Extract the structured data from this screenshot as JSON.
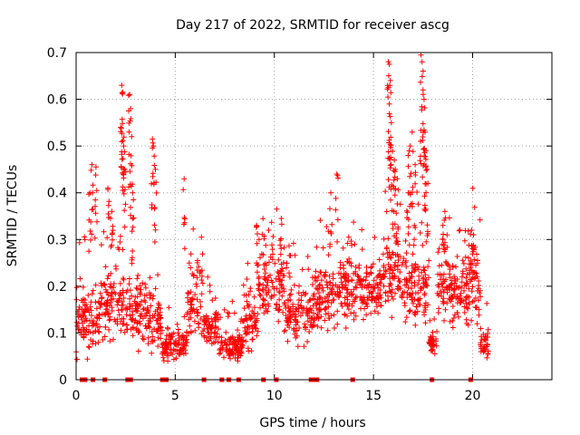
{
  "chart_data": {
    "type": "scatter",
    "title": "Day 217 of 2022, SRMTID for receiver ascg",
    "xlabel": "GPS time / hours",
    "ylabel": "SRMTID / TECUs",
    "xlim": [
      0,
      24
    ],
    "ylim": [
      0,
      0.7
    ],
    "xticks": [
      0,
      5,
      10,
      15,
      20
    ],
    "xtick_labels": [
      "0",
      "5",
      "10",
      "15",
      "20"
    ],
    "yticks": [
      0,
      0.1,
      0.2,
      0.3,
      0.4,
      0.5,
      0.6,
      0.7
    ],
    "ytick_labels": [
      "0",
      "0.1",
      "0.2",
      "0.3",
      "0.4",
      "0.5",
      "0.6",
      "0.7"
    ],
    "grid": true,
    "marker": "+",
    "marker_color": "#ff0000",
    "baseline_marker": "square",
    "data_range_hours": [
      0,
      20.8
    ],
    "baseline_points_x": [
      0.3,
      0.45,
      0.85,
      1.45,
      2.6,
      2.75,
      4.35,
      4.55,
      6.45,
      7.35,
      7.7,
      8.2,
      9.45,
      10.1,
      11.85,
      12.0,
      12.15,
      13.95,
      17.95,
      19.9
    ],
    "bursts": [
      {
        "x": 0.8,
        "y": 0.46
      },
      {
        "x": 1.0,
        "y": 0.455
      },
      {
        "x": 0.7,
        "y": 0.4
      },
      {
        "x": 1.6,
        "y": 0.41
      },
      {
        "x": 1.8,
        "y": 0.36
      },
      {
        "x": 2.25,
        "y": 0.54
      },
      {
        "x": 2.3,
        "y": 0.63
      },
      {
        "x": 2.35,
        "y": 0.615
      },
      {
        "x": 2.4,
        "y": 0.5
      },
      {
        "x": 2.45,
        "y": 0.45
      },
      {
        "x": 2.7,
        "y": 0.61
      },
      {
        "x": 2.75,
        "y": 0.58
      },
      {
        "x": 2.8,
        "y": 0.52
      },
      {
        "x": 2.85,
        "y": 0.4
      },
      {
        "x": 3.85,
        "y": 0.515
      },
      {
        "x": 3.9,
        "y": 0.5
      },
      {
        "x": 4.0,
        "y": 0.45
      },
      {
        "x": 5.45,
        "y": 0.43
      },
      {
        "x": 9.1,
        "y": 0.33
      },
      {
        "x": 10.35,
        "y": 0.345
      },
      {
        "x": 12.85,
        "y": 0.4
      },
      {
        "x": 13.15,
        "y": 0.44
      },
      {
        "x": 15.75,
        "y": 0.68
      },
      {
        "x": 15.8,
        "y": 0.675
      },
      {
        "x": 15.85,
        "y": 0.64
      },
      {
        "x": 15.8,
        "y": 0.59
      },
      {
        "x": 15.9,
        "y": 0.55
      },
      {
        "x": 16.05,
        "y": 0.47
      },
      {
        "x": 16.1,
        "y": 0.45
      },
      {
        "x": 16.2,
        "y": 0.43
      },
      {
        "x": 16.75,
        "y": 0.48
      },
      {
        "x": 16.85,
        "y": 0.5
      },
      {
        "x": 16.95,
        "y": 0.53
      },
      {
        "x": 17.1,
        "y": 0.46
      },
      {
        "x": 17.4,
        "y": 0.695
      },
      {
        "x": 17.45,
        "y": 0.68
      },
      {
        "x": 17.5,
        "y": 0.62
      },
      {
        "x": 17.55,
        "y": 0.6
      },
      {
        "x": 17.6,
        "y": 0.53
      },
      {
        "x": 17.65,
        "y": 0.49
      },
      {
        "x": 17.7,
        "y": 0.45
      },
      {
        "x": 18.5,
        "y": 0.33
      },
      {
        "x": 18.6,
        "y": 0.36
      },
      {
        "x": 19.95,
        "y": 0.32
      },
      {
        "x": 20.05,
        "y": 0.31
      }
    ],
    "segments": [
      {
        "start": 0.0,
        "end": 1.2,
        "base": 0.13,
        "spread": 0.06
      },
      {
        "start": 1.2,
        "end": 2.2,
        "base": 0.16,
        "spread": 0.07
      },
      {
        "start": 2.2,
        "end": 3.5,
        "base": 0.15,
        "spread": 0.07
      },
      {
        "start": 3.5,
        "end": 4.3,
        "base": 0.13,
        "spread": 0.06
      },
      {
        "start": 4.3,
        "end": 5.6,
        "base": 0.075,
        "spread": 0.03
      },
      {
        "start": 5.6,
        "end": 6.4,
        "base": 0.17,
        "spread": 0.07
      },
      {
        "start": 6.4,
        "end": 7.2,
        "base": 0.11,
        "spread": 0.04
      },
      {
        "start": 7.2,
        "end": 8.4,
        "base": 0.07,
        "spread": 0.03
      },
      {
        "start": 8.4,
        "end": 9.2,
        "base": 0.12,
        "spread": 0.05
      },
      {
        "start": 9.2,
        "end": 10.5,
        "base": 0.2,
        "spread": 0.06
      },
      {
        "start": 10.5,
        "end": 12.0,
        "base": 0.14,
        "spread": 0.05
      },
      {
        "start": 12.0,
        "end": 13.2,
        "base": 0.17,
        "spread": 0.06
      },
      {
        "start": 13.2,
        "end": 14.4,
        "base": 0.2,
        "spread": 0.06
      },
      {
        "start": 14.4,
        "end": 15.4,
        "base": 0.19,
        "spread": 0.05
      },
      {
        "start": 15.4,
        "end": 16.4,
        "base": 0.23,
        "spread": 0.07
      },
      {
        "start": 16.4,
        "end": 17.8,
        "base": 0.2,
        "spread": 0.07
      },
      {
        "start": 17.8,
        "end": 18.2,
        "base": 0.08,
        "spread": 0.02
      },
      {
        "start": 18.2,
        "end": 19.8,
        "base": 0.19,
        "spread": 0.06
      },
      {
        "start": 19.8,
        "end": 20.4,
        "base": 0.2,
        "spread": 0.08
      },
      {
        "start": 20.4,
        "end": 20.8,
        "base": 0.075,
        "spread": 0.025
      }
    ]
  }
}
